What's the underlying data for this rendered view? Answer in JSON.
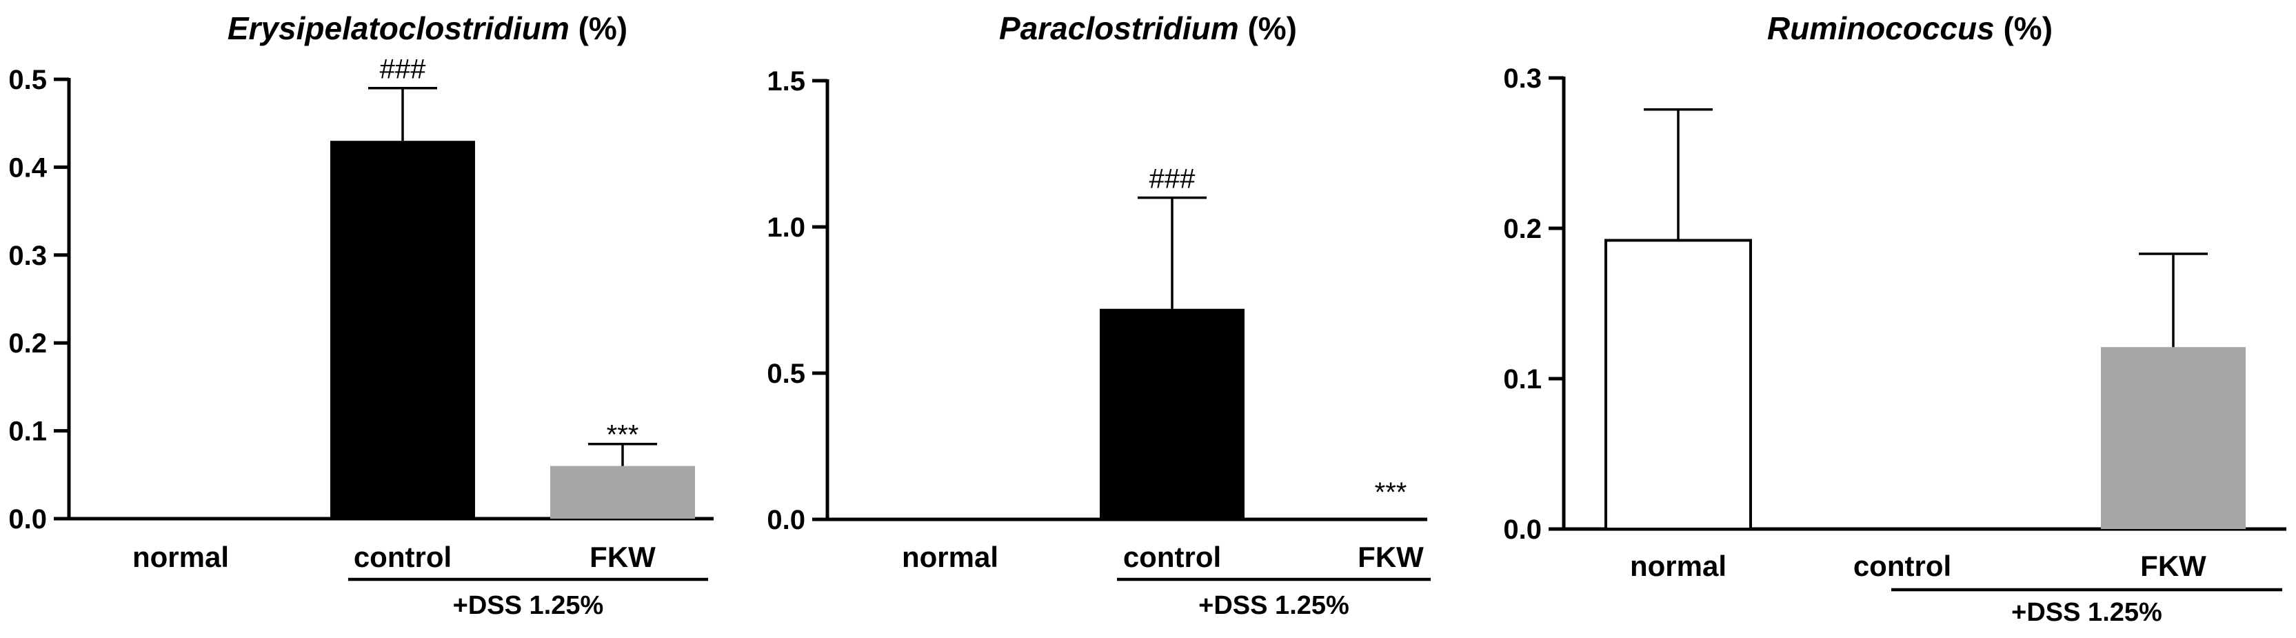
{
  "chart_data": [
    {
      "type": "bar",
      "title": {
        "genus": "Erysipelatoclostridium",
        "unit": " (%)"
      },
      "categories": [
        "normal",
        "control",
        "FKW"
      ],
      "values": [
        0,
        0.43,
        0.06
      ],
      "errors": [
        0,
        0.06,
        0.025
      ],
      "annotations": [
        "",
        "###",
        "***"
      ],
      "ylim": [
        0,
        0.5
      ],
      "yticks": [
        "0.0",
        "0.1",
        "0.2",
        "0.3",
        "0.4",
        "0.5"
      ],
      "group_label": "+DSS 1.25%",
      "colors": [
        "#ffffff",
        "#000000",
        "#a6a6a8"
      ]
    },
    {
      "type": "bar",
      "title": {
        "genus": "Paraclostridium",
        "unit": " (%)"
      },
      "categories": [
        "normal",
        "control",
        "FKW"
      ],
      "values": [
        0,
        0.72,
        0
      ],
      "errors": [
        0,
        0.38,
        0
      ],
      "annotations": [
        "",
        "###",
        "***"
      ],
      "ylim": [
        0,
        1.5
      ],
      "yticks": [
        "0.0",
        "0.5",
        "1.0",
        "1.5"
      ],
      "group_label": "+DSS 1.25%",
      "colors": [
        "#ffffff",
        "#000000",
        "#a6a6a8"
      ]
    },
    {
      "type": "bar",
      "title": {
        "genus": "Ruminococcus",
        "unit": " (%)"
      },
      "categories": [
        "normal",
        "control",
        "FKW"
      ],
      "values": [
        0.192,
        0,
        0.121
      ],
      "errors": [
        0.087,
        0,
        0.062
      ],
      "annotations": [
        "",
        "",
        ""
      ],
      "ylim": [
        0,
        0.3
      ],
      "yticks": [
        "0.0",
        "0.1",
        "0.2",
        "0.3"
      ],
      "group_label": "+DSS 1.25%",
      "colors": [
        "#ffffff",
        "#000000",
        "#a6a6a8"
      ]
    }
  ]
}
